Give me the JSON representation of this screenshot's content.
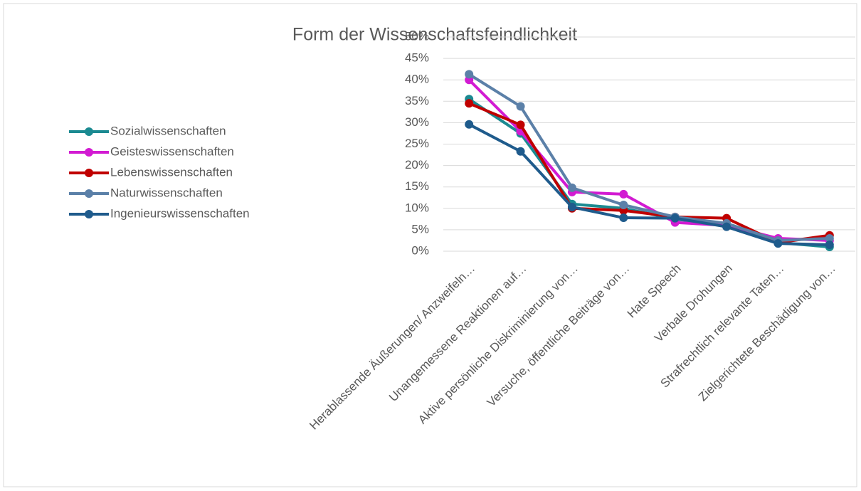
{
  "chart_data": {
    "type": "line",
    "title": "Form der Wissenschaftsfeindlichkeit",
    "categories": [
      "Herablassende Äußerungen/ Anzweifeln…",
      "Unangemessene Reaktionen auf…",
      "Aktive persönliche Diskriminierung von…",
      "Versuche, öffentliche Beiträge von…",
      "Hate Speech",
      "Verbale Drohungen",
      "Strafrechtlich relevante Taten…",
      "Zielgerichtete Beschädigung von…"
    ],
    "series": [
      {
        "name": "Sozialwissenschaften",
        "color": "#1b8a91",
        "values": [
          35.5,
          27.5,
          11,
          10,
          7.5,
          6,
          2,
          1
        ]
      },
      {
        "name": "Geisteswissenschaften",
        "color": "#d21bd2",
        "values": [
          40,
          28,
          13.8,
          13.3,
          6.7,
          6,
          3,
          2.5
        ]
      },
      {
        "name": "Lebenswissenschaften",
        "color": "#c00000",
        "values": [
          34.5,
          29.5,
          10,
          9.5,
          8,
          7.7,
          2,
          3.7
        ]
      },
      {
        "name": "Naturwissenschaften",
        "color": "#5b80a8",
        "values": [
          41.3,
          33.8,
          14.8,
          10.8,
          8,
          6.5,
          2.5,
          3
        ]
      },
      {
        "name": "Ingenieurswissenschaften",
        "color": "#1f5b8c",
        "values": [
          29.6,
          23.3,
          10.3,
          7.8,
          7.7,
          5.7,
          1.8,
          1.5
        ]
      }
    ],
    "ylim": [
      0,
      50
    ],
    "yticks": [
      {
        "value": 0,
        "label": "0%"
      },
      {
        "value": 5,
        "label": "5%"
      },
      {
        "value": 10,
        "label": "10%"
      },
      {
        "value": 15,
        "label": "15%"
      },
      {
        "value": 20,
        "label": "20%"
      },
      {
        "value": 25,
        "label": "25%"
      },
      {
        "value": 30,
        "label": "30%"
      },
      {
        "value": 35,
        "label": "35%"
      },
      {
        "value": 40,
        "label": "40%"
      },
      {
        "value": 45,
        "label": "45%"
      },
      {
        "value": 50,
        "label": "50%"
      }
    ],
    "grid": true,
    "legend": "left"
  }
}
